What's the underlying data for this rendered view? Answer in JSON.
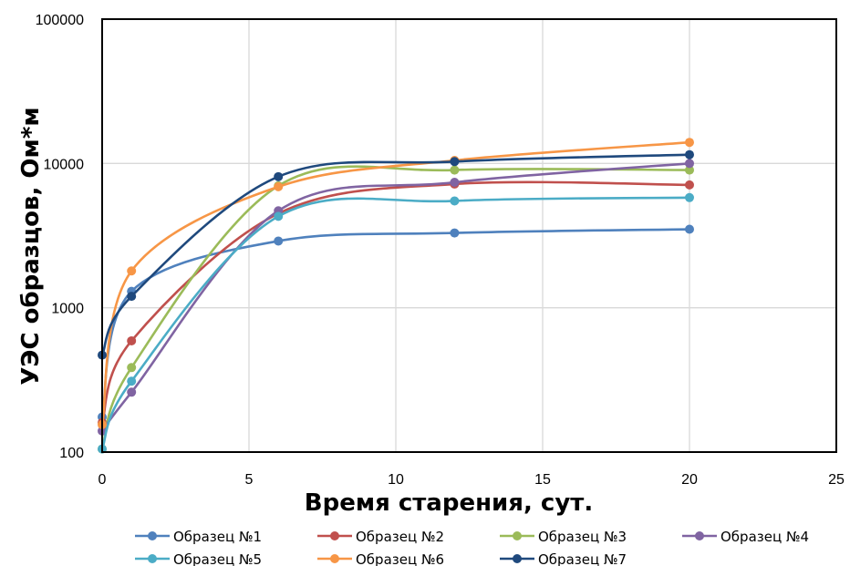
{
  "chart_data": {
    "type": "scatter",
    "xlabel": "Время старения, сут.",
    "ylabel": "УЭС образцов, Ом*м",
    "xlim": [
      0,
      25
    ],
    "ylim": [
      100,
      100000
    ],
    "y_scale": "log",
    "x_ticks": [
      "0",
      "5",
      "10",
      "15",
      "20",
      "25"
    ],
    "y_ticks": [
      "100",
      "1000",
      "10000",
      "100000"
    ],
    "grid": true,
    "legend_position": "bottom",
    "series": [
      {
        "name": "Образец №1",
        "color": "#4f81bd",
        "x": [
          0,
          1,
          6,
          12,
          20
        ],
        "y": [
          175,
          1300,
          2900,
          3300,
          3500
        ]
      },
      {
        "name": "Образец №2",
        "color": "#c0504d",
        "x": [
          0,
          1,
          6,
          12,
          20
        ],
        "y": [
          160,
          590,
          4500,
          7200,
          7100
        ]
      },
      {
        "name": "Образец №3",
        "color": "#9bbb59",
        "x": [
          0,
          1,
          6,
          12,
          20
        ],
        "y": [
          105,
          385,
          7000,
          9000,
          9000
        ]
      },
      {
        "name": "Образец №4",
        "color": "#8064a2",
        "x": [
          0,
          1,
          6,
          12,
          20
        ],
        "y": [
          140,
          260,
          4700,
          7400,
          10000
        ]
      },
      {
        "name": "Образец №5",
        "color": "#4bacc6",
        "x": [
          0,
          1,
          6,
          12,
          20
        ],
        "y": [
          105,
          310,
          4300,
          5500,
          5800
        ]
      },
      {
        "name": "Образец №6",
        "color": "#f79646",
        "x": [
          0,
          1,
          6,
          12,
          20
        ],
        "y": [
          155,
          1800,
          6900,
          10500,
          14000
        ]
      },
      {
        "name": "Образец №7",
        "color": "#1f497d",
        "x": [
          0,
          1,
          6,
          12,
          20
        ],
        "y": [
          470,
          1200,
          8100,
          10300,
          11500
        ]
      }
    ]
  }
}
